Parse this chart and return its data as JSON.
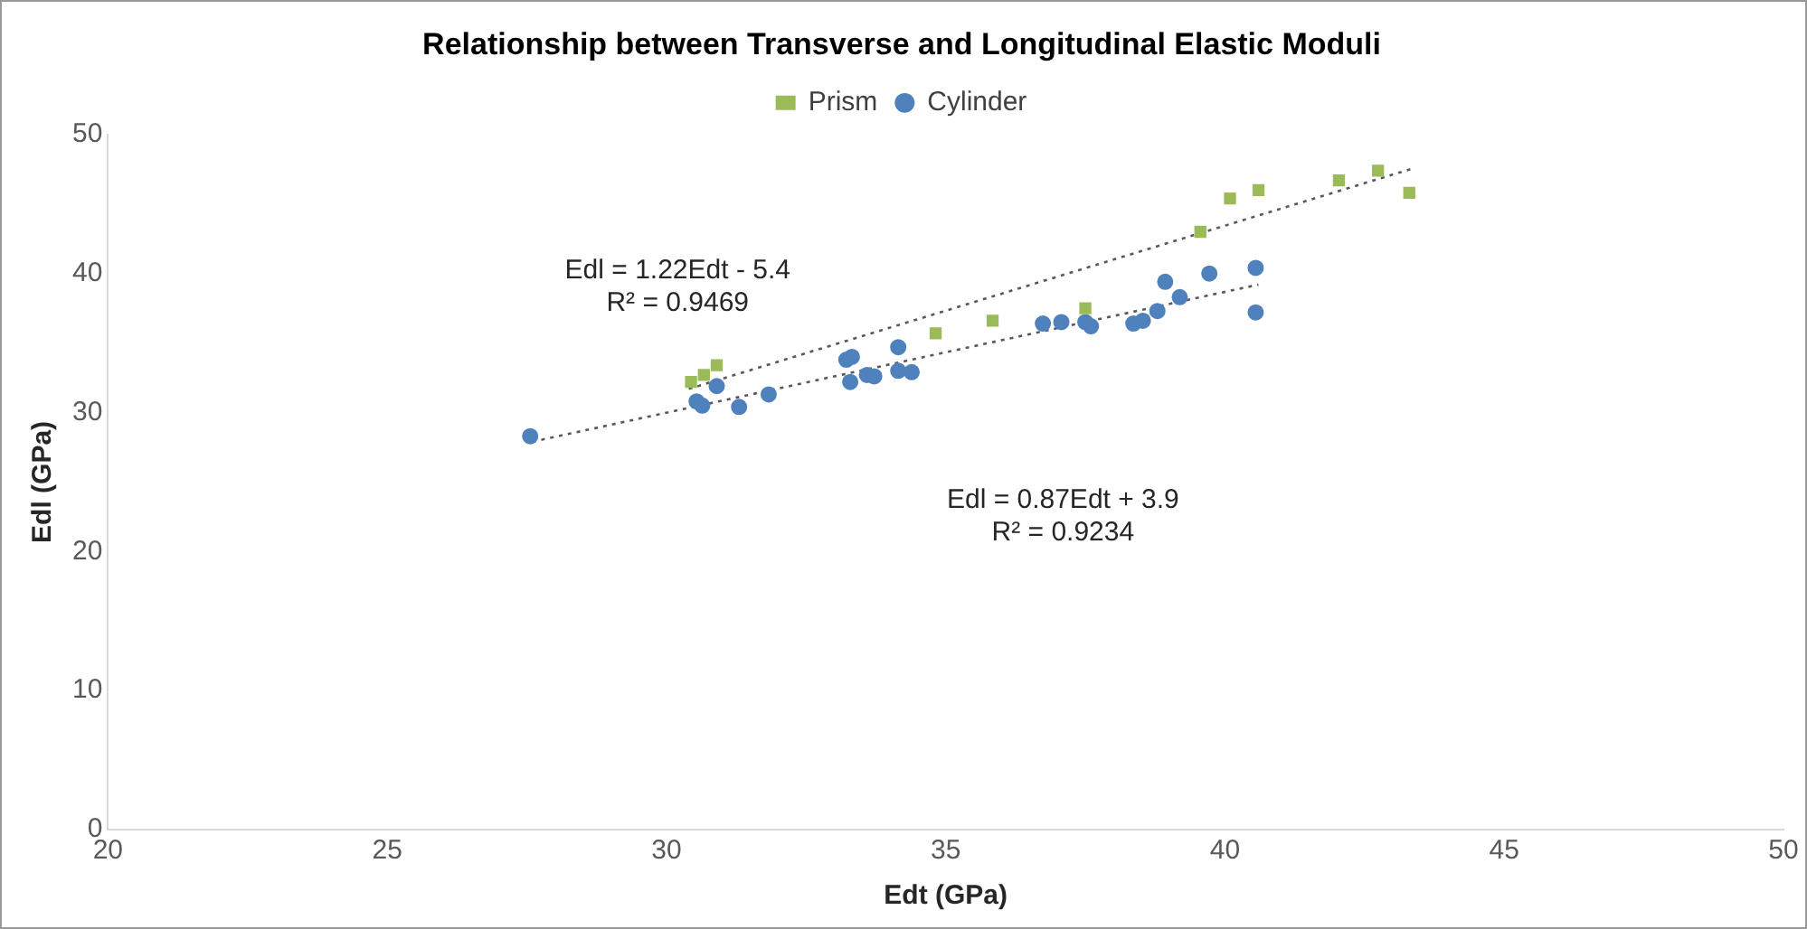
{
  "chart_data": {
    "type": "scatter",
    "title": "Relationship between Transverse and Longitudinal Elastic Moduli",
    "xlabel": "Edt (GPa)",
    "ylabel": "Edl (GPa)",
    "xlim": [
      20,
      50
    ],
    "xticks": [
      20,
      25,
      30,
      35,
      40,
      45,
      50
    ],
    "ylim": [
      0,
      50
    ],
    "yticks": [
      0,
      10,
      20,
      30,
      40,
      50
    ],
    "grid": false,
    "legend": "top",
    "series": [
      {
        "name": "Prism",
        "color": "#9bbb59",
        "marker": "square",
        "x": [
          30.44,
          30.67,
          30.9,
          34.82,
          35.84,
          37.5,
          39.56,
          40.09,
          40.6,
          42.04,
          42.74,
          43.3
        ],
        "values": [
          32.2,
          32.7,
          33.4,
          35.7,
          36.6,
          37.5,
          43.0,
          45.4,
          46.0,
          46.7,
          47.4,
          45.8
        ]
      },
      {
        "name": "Cylinder",
        "color": "#4f81bd",
        "marker": "circle",
        "x": [
          27.56,
          30.54,
          30.64,
          30.9,
          31.3,
          31.83,
          33.22,
          33.32,
          33.29,
          33.59,
          33.72,
          34.15,
          34.15,
          34.39,
          36.74,
          37.07,
          37.5,
          37.6,
          38.36,
          38.53,
          38.79,
          38.93,
          39.19,
          39.72,
          40.55,
          40.55
        ],
        "values": [
          28.3,
          30.8,
          30.5,
          31.9,
          30.4,
          31.3,
          33.8,
          34.0,
          32.2,
          32.7,
          32.6,
          34.7,
          33.0,
          32.9,
          36.4,
          36.5,
          36.5,
          36.2,
          36.4,
          36.6,
          37.3,
          39.4,
          38.3,
          40.0,
          40.4,
          37.2
        ]
      },
      {
        "type": "line",
        "color": "#595959",
        "line_style": "dotted",
        "marker": "none",
        "x": [
          30.4,
          43.4
        ],
        "values": [
          31.7,
          47.6
        ]
      },
      {
        "type": "line",
        "color": "#595959",
        "line_style": "dotted",
        "marker": "none",
        "x": [
          27.6,
          40.6
        ],
        "values": [
          27.9,
          39.2
        ]
      }
    ],
    "annotations": [
      "Edl = 1.22Edt - 5.4\nR² = 0.9469",
      "Edl = 0.87Edt + 3.9\nR² = 0.9234"
    ]
  }
}
